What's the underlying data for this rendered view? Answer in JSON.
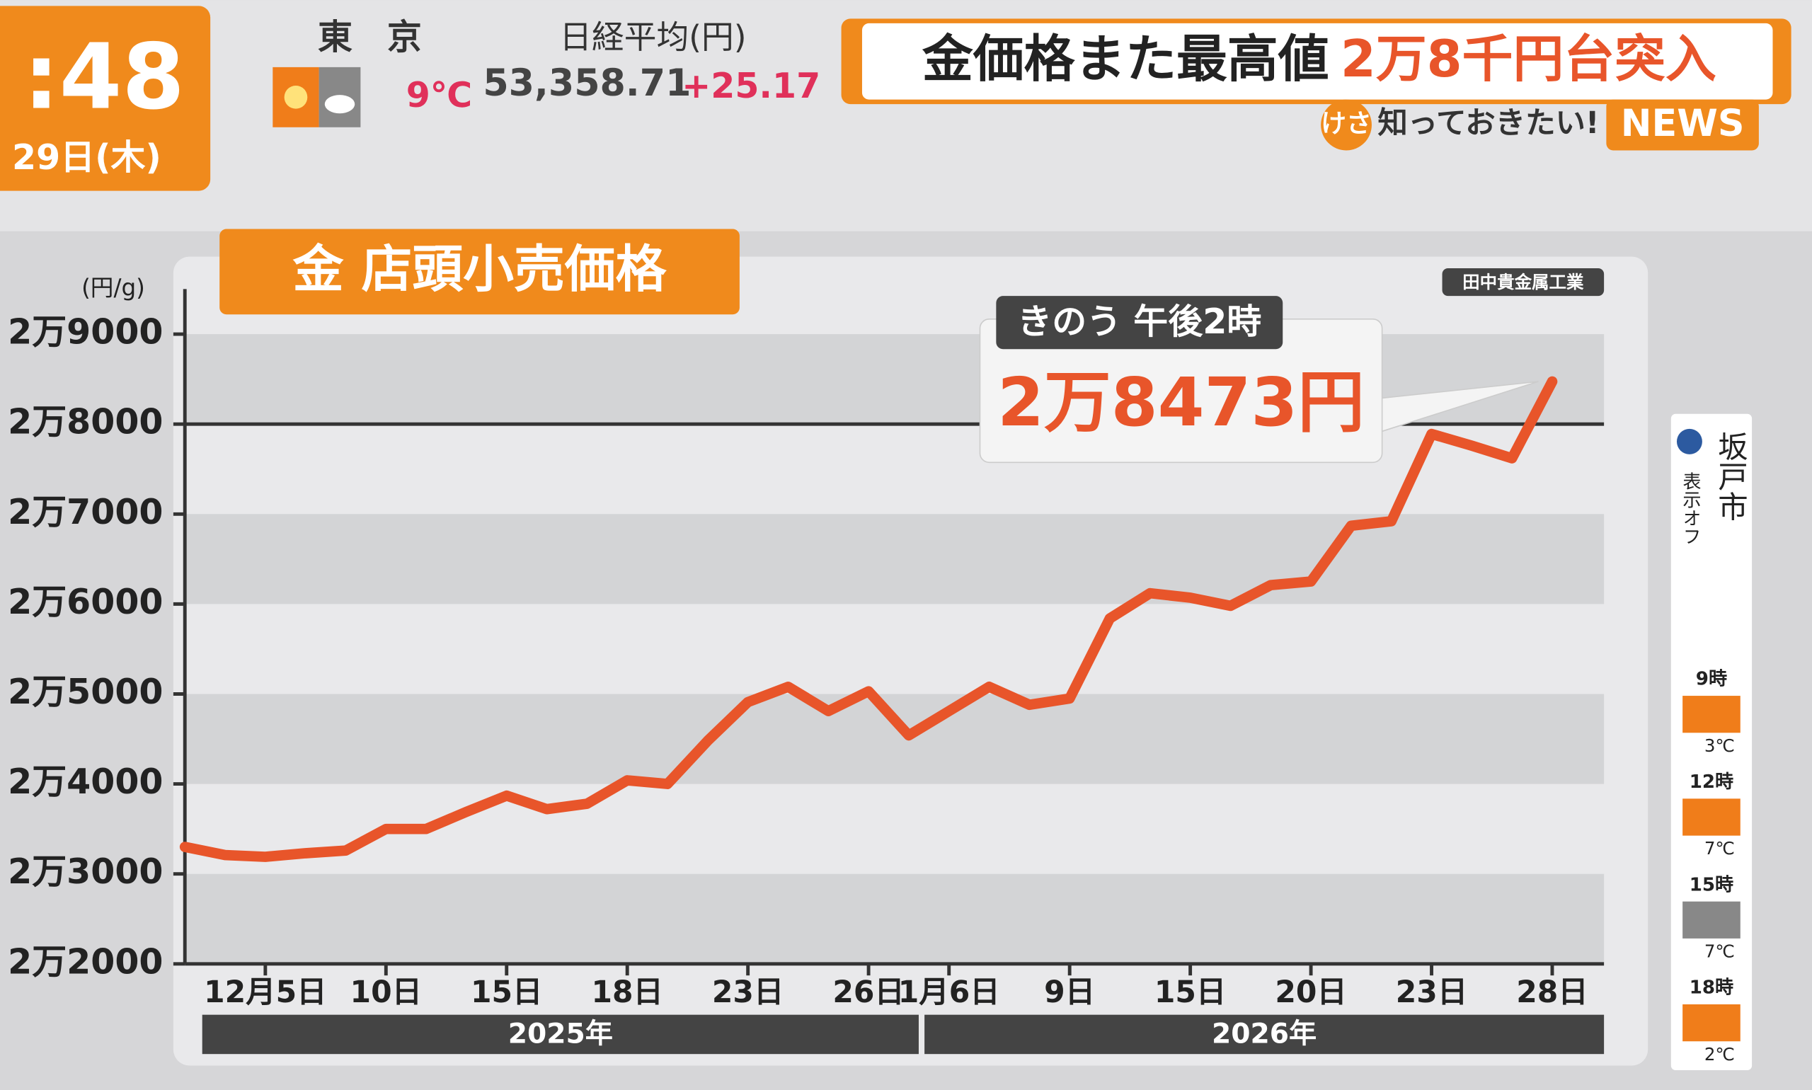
{
  "header": {
    "clock": ":48",
    "date": "29日(木)",
    "city": "東　京",
    "temperature": "9℃",
    "index_name": "日経平均(円)",
    "index_value": "53,358.71",
    "index_change": "+25.17",
    "headline_lead": "金価格また最高値",
    "headline_highlight": "2万8千円台突入",
    "program_badge": "けさ",
    "program_name": "知っておきたい!",
    "program_news": "NEWS"
  },
  "weather_panel": {
    "location": "坂戸市",
    "toggle": "表示オフ",
    "slots": [
      {
        "time": "9時",
        "temp": "3℃"
      },
      {
        "time": "12時",
        "temp": "7℃"
      },
      {
        "time": "15時",
        "temp": "7℃"
      },
      {
        "time": "18時",
        "temp": "2℃"
      }
    ]
  },
  "chart_data": {
    "type": "line",
    "title": "金 店頭小売価格",
    "source": "田中貴金属工業",
    "y_label": "(円/g)",
    "annotation": "きのう 午後2時",
    "categories": [
      null,
      null,
      "12月5日",
      null,
      null,
      "10日",
      null,
      null,
      "15日",
      null,
      null,
      "18日",
      null,
      null,
      "23日",
      null,
      null,
      "26日",
      null,
      "1月6日",
      null,
      null,
      "9日",
      null,
      null,
      "15日",
      null,
      null,
      "20日",
      null,
      null,
      "23日",
      null,
      null,
      "28日"
    ],
    "x_groups": [
      "2025年",
      "2026年"
    ],
    "values": [
      23300,
      23210,
      23190,
      23230,
      23260,
      23500,
      23500,
      23690,
      23870,
      23720,
      23780,
      24040,
      24000,
      24480,
      24910,
      25080,
      24810,
      25030,
      24540,
      24810,
      25080,
      24880,
      24950,
      25840,
      26120,
      26070,
      25980,
      26210,
      26250,
      26870,
      26920,
      27890,
      27760,
      27620,
      28473
    ],
    "value_labels": [
      null,
      null,
      null,
      null,
      null,
      null,
      null,
      null,
      null,
      null,
      null,
      null,
      null,
      null,
      null,
      null,
      null,
      null,
      null,
      null,
      null,
      null,
      null,
      null,
      null,
      null,
      null,
      null,
      null,
      null,
      null,
      null,
      null,
      null,
      "2万8473円"
    ],
    "color": "#e8552a",
    "ylim": [
      22000,
      29000
    ],
    "yticks": [
      {
        "value": 22000,
        "label": "2万2000"
      },
      {
        "value": 23000,
        "label": "2万3000"
      },
      {
        "value": 24000,
        "label": "2万4000"
      },
      {
        "value": 25000,
        "label": "2万5000"
      },
      {
        "value": 26000,
        "label": "2万6000"
      },
      {
        "value": 27000,
        "label": "2万7000"
      },
      {
        "value": 28000,
        "label": "2万8000"
      },
      {
        "value": 29000,
        "label": "2万9000"
      }
    ],
    "reference_line": 28000
  }
}
